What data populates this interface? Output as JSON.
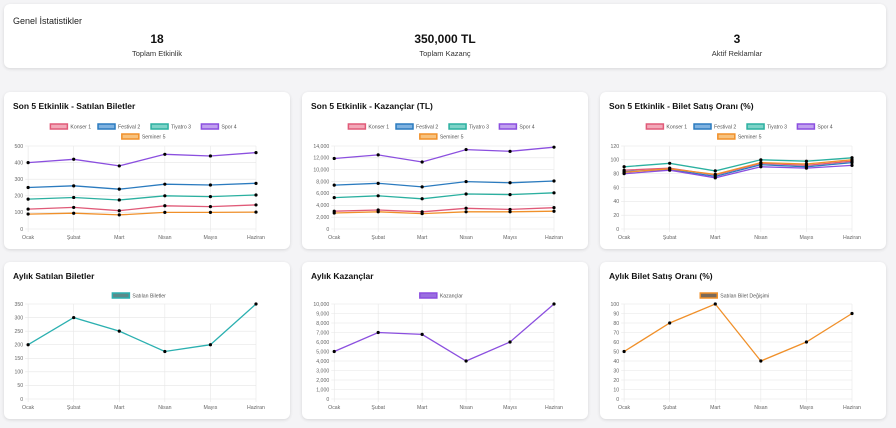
{
  "stats": {
    "title": "Genel İstatistikler",
    "items": [
      {
        "value": "18",
        "label": "Toplam Etkinlik"
      },
      {
        "value": "350,000 TL",
        "label": "Toplam Kazanç"
      },
      {
        "value": "3",
        "label": "Aktif Reklamlar"
      }
    ]
  },
  "chart_data": [
    {
      "type": "line",
      "title": "Son 5 Etkinlik - Satılan Biletler",
      "categories": [
        "Ocak",
        "Şubat",
        "Mart",
        "Nisan",
        "Mayıs",
        "Haziran"
      ],
      "ylim": [
        0,
        500
      ],
      "yticks": [
        "0",
        "100",
        "200",
        "300",
        "400",
        "500"
      ],
      "grid": true,
      "legend": "top",
      "series": [
        {
          "name": "Konser 1",
          "color": "#e05a78",
          "fill": "#f2a8b8",
          "values": [
            120,
            130,
            110,
            140,
            135,
            145
          ]
        },
        {
          "name": "Festival 2",
          "color": "#2b7bbf",
          "fill": "#7fb2e0",
          "values": [
            250,
            260,
            240,
            270,
            265,
            275
          ]
        },
        {
          "name": "Tiyatro 3",
          "color": "#2bb0a0",
          "fill": "#7ed3c8",
          "values": [
            180,
            190,
            175,
            200,
            195,
            205
          ]
        },
        {
          "name": "Spor 4",
          "color": "#8b4fdf",
          "fill": "#c0a0ef",
          "values": [
            400,
            420,
            380,
            450,
            440,
            460
          ]
        },
        {
          "name": "Seminer 5",
          "color": "#f0902a",
          "fill": "#f7c27e",
          "values": [
            90,
            95,
            85,
            100,
            100,
            102
          ]
        }
      ]
    },
    {
      "type": "line",
      "title": "Son 5 Etkinlik - Kazançlar (TL)",
      "categories": [
        "Ocak",
        "Şubat",
        "Mart",
        "Nisan",
        "Mayıs",
        "Haziran"
      ],
      "ylim": [
        0,
        14000
      ],
      "yticks": [
        "0",
        "2,000",
        "4,000",
        "6,000",
        "8,000",
        "10,000",
        "12,000",
        "14,000"
      ],
      "grid": true,
      "legend": "top",
      "series": [
        {
          "name": "Konser 1",
          "color": "#e05a78",
          "fill": "#f2a8b8",
          "values": [
            3000,
            3200,
            2900,
            3500,
            3300,
            3600
          ]
        },
        {
          "name": "Festival 2",
          "color": "#2b7bbf",
          "fill": "#7fb2e0",
          "values": [
            7400,
            7700,
            7100,
            8000,
            7800,
            8100
          ]
        },
        {
          "name": "Tiyatro 3",
          "color": "#2bb0a0",
          "fill": "#7ed3c8",
          "values": [
            5300,
            5600,
            5100,
            5900,
            5800,
            6100
          ]
        },
        {
          "name": "Spor 4",
          "color": "#8b4fdf",
          "fill": "#c0a0ef",
          "values": [
            11900,
            12500,
            11300,
            13400,
            13100,
            13800
          ]
        },
        {
          "name": "Seminer 5",
          "color": "#f0902a",
          "fill": "#f7c27e",
          "values": [
            2700,
            2900,
            2600,
            2900,
            2900,
            3000
          ]
        }
      ]
    },
    {
      "type": "line",
      "title": "Son 5 Etkinlik - Bilet Satış Oranı (%)",
      "categories": [
        "Ocak",
        "Şubat",
        "Mart",
        "Nisan",
        "Mayıs",
        "Haziran"
      ],
      "ylim": [
        0,
        120
      ],
      "yticks": [
        "0",
        "20",
        "40",
        "60",
        "80",
        "100",
        "120"
      ],
      "grid": true,
      "legend": "top",
      "series": [
        {
          "name": "Konser 1",
          "color": "#e05a78",
          "fill": "#f2a8b8",
          "values": [
            85,
            88,
            78,
            95,
            92,
            98
          ]
        },
        {
          "name": "Festival 2",
          "color": "#2b7bbf",
          "fill": "#7fb2e0",
          "values": [
            83,
            86,
            76,
            93,
            90,
            96
          ]
        },
        {
          "name": "Tiyatro 3",
          "color": "#2bb0a0",
          "fill": "#7ed3c8",
          "values": [
            90,
            95,
            84,
            100,
            98,
            103
          ]
        },
        {
          "name": "Spor 4",
          "color": "#8b4fdf",
          "fill": "#c0a0ef",
          "values": [
            80,
            85,
            74,
            90,
            88,
            92
          ]
        },
        {
          "name": "Seminer 5",
          "color": "#f0902a",
          "fill": "#f7c27e",
          "values": [
            82,
            87,
            79,
            96,
            94,
            100
          ]
        }
      ]
    },
    {
      "type": "line",
      "title": "Aylık Satılan Biletler",
      "categories": [
        "Ocak",
        "Şubat",
        "Mart",
        "Nisan",
        "Mayıs",
        "Haziran"
      ],
      "ylim": [
        0,
        350
      ],
      "yticks": [
        "0",
        "50",
        "100",
        "150",
        "200",
        "250",
        "300",
        "350"
      ],
      "grid": true,
      "legend": "top",
      "series": [
        {
          "name": "Satılan Biletler",
          "color": "#2bb0b0",
          "fill": "#5c8a8a",
          "values": [
            200,
            300,
            250,
            175,
            200,
            350
          ]
        }
      ]
    },
    {
      "type": "line",
      "title": "Aylık Kazançlar",
      "categories": [
        "Ocak",
        "Şubat",
        "Mart",
        "Nisan",
        "Mayıs",
        "Haziran"
      ],
      "ylim": [
        0,
        10000
      ],
      "yticks": [
        "0",
        "1,000",
        "2,000",
        "3,000",
        "4,000",
        "5,000",
        "6,000",
        "7,000",
        "8,000",
        "9,000",
        "10,000"
      ],
      "grid": true,
      "legend": "top",
      "series": [
        {
          "name": "Kazançlar",
          "color": "#8b4fdf",
          "fill": "#9a6fe0",
          "values": [
            5000,
            7000,
            6800,
            4000,
            6000,
            10000
          ]
        }
      ]
    },
    {
      "type": "line",
      "title": "Aylık Bilet Satış Oranı (%)",
      "categories": [
        "Ocak",
        "Şubat",
        "Mart",
        "Nisan",
        "Mayıs",
        "Haziran"
      ],
      "ylim": [
        0,
        100
      ],
      "yticks": [
        "0",
        "10",
        "20",
        "30",
        "40",
        "50",
        "60",
        "70",
        "80",
        "90",
        "100"
      ],
      "grid": true,
      "legend": "top",
      "series": [
        {
          "name": "Satılan Bilet Değişimi",
          "color": "#f0902a",
          "fill": "#7a6a5a",
          "values": [
            50,
            80,
            100,
            40,
            60,
            90
          ]
        }
      ]
    }
  ]
}
